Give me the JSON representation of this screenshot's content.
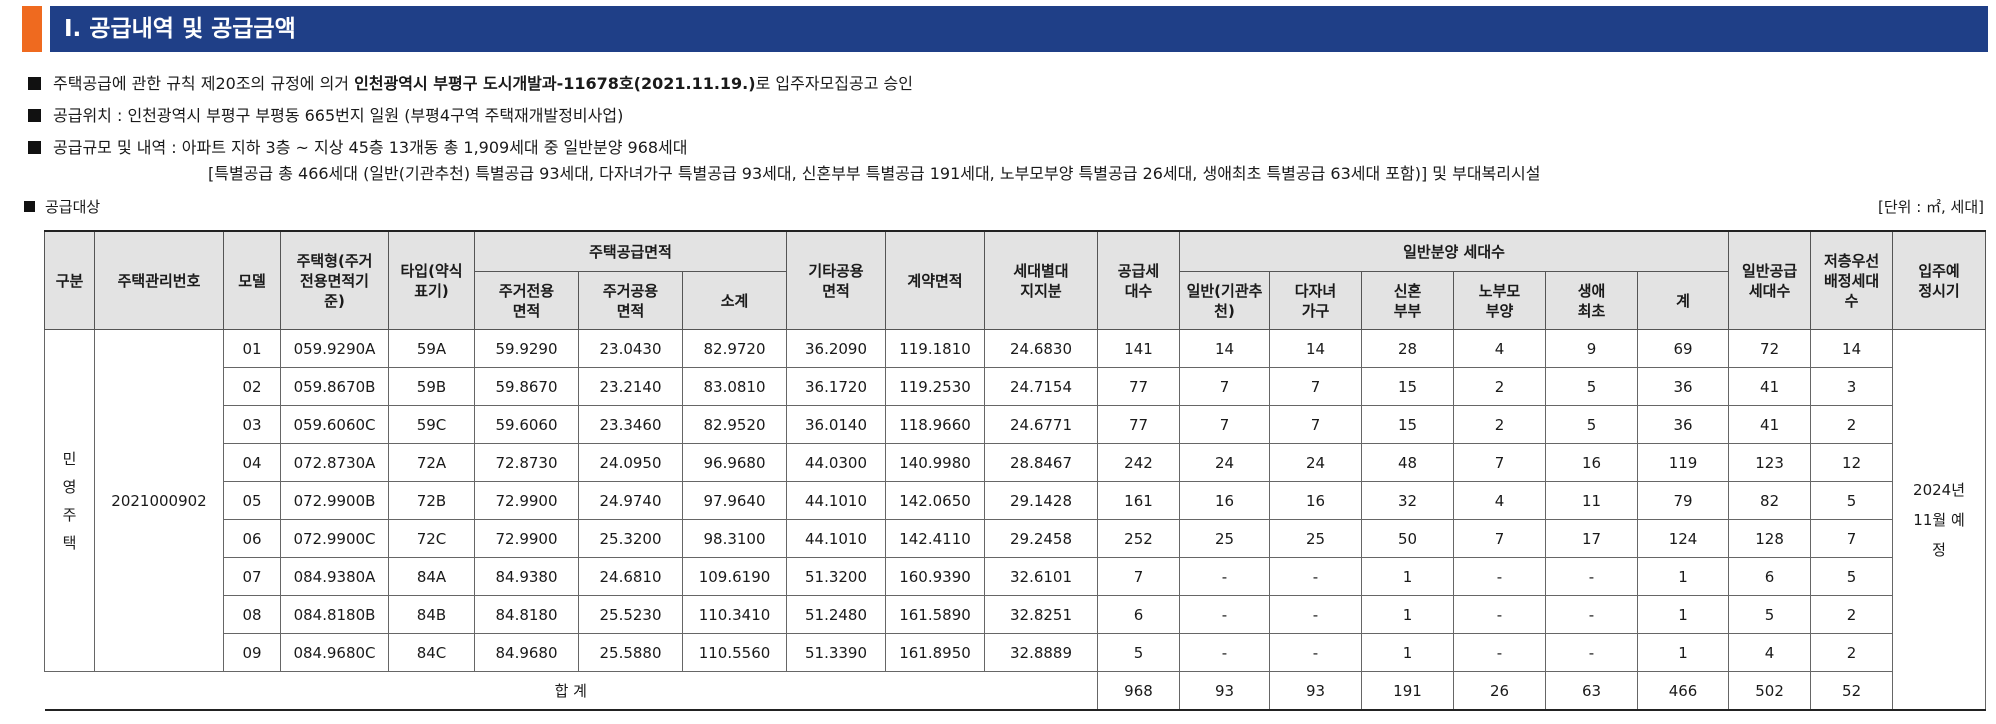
{
  "section_title": "I. 공급내역 및 공급금액",
  "bullets": {
    "approval": {
      "prefix": "주택공급에 관한 규칙 제20조의 규정에 의거 ",
      "bold": "인천광역시 부평구 도시개발과-11678호(2021.11.19.)",
      "suffix": "로 입주자모집공고 승인"
    },
    "location": "공급위치 : 인천광역시 부평구 부평동 665번지 일원 (부평4구역 주택재개발정비사업)",
    "scale": "공급규모 및 내역 : 아파트 지하 3층 ~ 지상 45층 13개동 총 1,909세대 중 일반분양 968세대",
    "scale_detail": "[특별공급 총 466세대 (일반(기관추천) 특별공급 93세대, 다자녀가구 특별공급 93세대, 신혼부부 특별공급 191세대, 노부모부양 특별공급 26세대, 생애최초 특별공급 63세대 포함)] 및 부대복리시설",
    "target_label": "공급대상",
    "unit": "[단위 : ㎡, 세대]"
  },
  "table": {
    "headers": {
      "division": "구분",
      "mgmt_no": "주택관리번호",
      "model": "모델",
      "housing_type": "주택형(주거전용면적기준)",
      "type": "타입(약식표기)",
      "supply_area": "주택공급면적",
      "exclusive": "주거전용면적",
      "common": "주거공용면적",
      "subtotal": "소계",
      "other_common": "기타공용면적",
      "contract_area": "계약면적",
      "land_share": "세대별대지지분",
      "supply_units": "공급세대수",
      "general_sale": "일반분양 세대수",
      "institution": "일반(기관추천)",
      "multi_child": "다자녀가구",
      "newlywed": "신혼부부",
      "elderly": "노부모부양",
      "first_time": "생애최초",
      "sum": "계",
      "general_supply": "일반공급세대수",
      "low_floor": "저층우선배정세대수",
      "move_in": "입주예정시기"
    },
    "division_value": "민영주택",
    "mgmt_no_value": "2021000902",
    "move_in_value": "2024년 11월 예정",
    "rows": [
      {
        "model": "01",
        "housing_type": "059.9290A",
        "type": "59A",
        "exclusive": "59.9290",
        "common": "23.0430",
        "subtotal": "82.9720",
        "other_common": "36.2090",
        "contract": "119.1810",
        "land": "24.6830",
        "supply": "141",
        "institution": "14",
        "multi_child": "14",
        "newlywed": "28",
        "elderly": "4",
        "first_time": "9",
        "sum": "69",
        "general": "72",
        "low_floor": "14"
      },
      {
        "model": "02",
        "housing_type": "059.8670B",
        "type": "59B",
        "exclusive": "59.8670",
        "common": "23.2140",
        "subtotal": "83.0810",
        "other_common": "36.1720",
        "contract": "119.2530",
        "land": "24.7154",
        "supply": "77",
        "institution": "7",
        "multi_child": "7",
        "newlywed": "15",
        "elderly": "2",
        "first_time": "5",
        "sum": "36",
        "general": "41",
        "low_floor": "3"
      },
      {
        "model": "03",
        "housing_type": "059.6060C",
        "type": "59C",
        "exclusive": "59.6060",
        "common": "23.3460",
        "subtotal": "82.9520",
        "other_common": "36.0140",
        "contract": "118.9660",
        "land": "24.6771",
        "supply": "77",
        "institution": "7",
        "multi_child": "7",
        "newlywed": "15",
        "elderly": "2",
        "first_time": "5",
        "sum": "36",
        "general": "41",
        "low_floor": "2"
      },
      {
        "model": "04",
        "housing_type": "072.8730A",
        "type": "72A",
        "exclusive": "72.8730",
        "common": "24.0950",
        "subtotal": "96.9680",
        "other_common": "44.0300",
        "contract": "140.9980",
        "land": "28.8467",
        "supply": "242",
        "institution": "24",
        "multi_child": "24",
        "newlywed": "48",
        "elderly": "7",
        "first_time": "16",
        "sum": "119",
        "general": "123",
        "low_floor": "12"
      },
      {
        "model": "05",
        "housing_type": "072.9900B",
        "type": "72B",
        "exclusive": "72.9900",
        "common": "24.9740",
        "subtotal": "97.9640",
        "other_common": "44.1010",
        "contract": "142.0650",
        "land": "29.1428",
        "supply": "161",
        "institution": "16",
        "multi_child": "16",
        "newlywed": "32",
        "elderly": "4",
        "first_time": "11",
        "sum": "79",
        "general": "82",
        "low_floor": "5"
      },
      {
        "model": "06",
        "housing_type": "072.9900C",
        "type": "72C",
        "exclusive": "72.9900",
        "common": "25.3200",
        "subtotal": "98.3100",
        "other_common": "44.1010",
        "contract": "142.4110",
        "land": "29.2458",
        "supply": "252",
        "institution": "25",
        "multi_child": "25",
        "newlywed": "50",
        "elderly": "7",
        "first_time": "17",
        "sum": "124",
        "general": "128",
        "low_floor": "7"
      },
      {
        "model": "07",
        "housing_type": "084.9380A",
        "type": "84A",
        "exclusive": "84.9380",
        "common": "24.6810",
        "subtotal": "109.6190",
        "other_common": "51.3200",
        "contract": "160.9390",
        "land": "32.6101",
        "supply": "7",
        "institution": "-",
        "multi_child": "-",
        "newlywed": "1",
        "elderly": "-",
        "first_time": "-",
        "sum": "1",
        "general": "6",
        "low_floor": "5"
      },
      {
        "model": "08",
        "housing_type": "084.8180B",
        "type": "84B",
        "exclusive": "84.8180",
        "common": "25.5230",
        "subtotal": "110.3410",
        "other_common": "51.2480",
        "contract": "161.5890",
        "land": "32.8251",
        "supply": "6",
        "institution": "-",
        "multi_child": "-",
        "newlywed": "1",
        "elderly": "-",
        "first_time": "-",
        "sum": "1",
        "general": "5",
        "low_floor": "2"
      },
      {
        "model": "09",
        "housing_type": "084.9680C",
        "type": "84C",
        "exclusive": "84.9680",
        "common": "25.5880",
        "subtotal": "110.5560",
        "other_common": "51.3390",
        "contract": "161.8950",
        "land": "32.8889",
        "supply": "5",
        "institution": "-",
        "multi_child": "-",
        "newlywed": "1",
        "elderly": "-",
        "first_time": "-",
        "sum": "1",
        "general": "4",
        "low_floor": "2"
      }
    ],
    "total": {
      "label": "합 계",
      "supply": "968",
      "institution": "93",
      "multi_child": "93",
      "newlywed": "191",
      "elderly": "26",
      "first_time": "63",
      "sum": "466",
      "general": "502",
      "low_floor": "52"
    }
  }
}
